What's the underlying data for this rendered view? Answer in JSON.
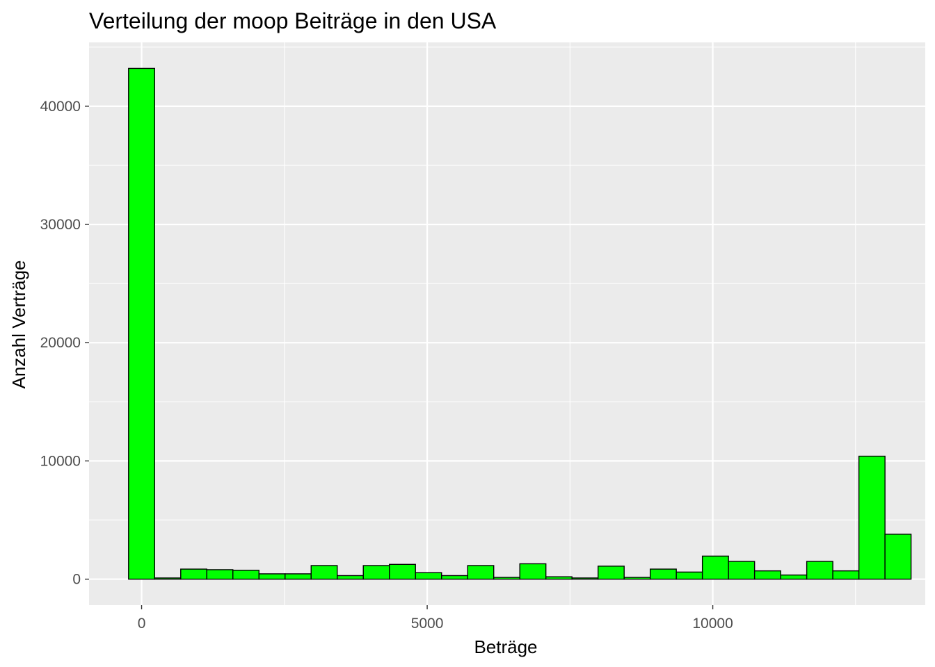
{
  "chart_data": {
    "type": "bar",
    "title": "Verteilung der moop Beiträge in den USA",
    "xlabel": "Beträge",
    "ylabel": "Anzahl Verträge",
    "xlim": [
      -920,
      13720
    ],
    "ylim": [
      -2200,
      45400
    ],
    "x_ticks": [
      0,
      5000,
      10000
    ],
    "y_ticks": [
      0,
      10000,
      20000,
      30000,
      40000
    ],
    "grid": true,
    "bin_width": 456.7,
    "colors": {
      "fill": "#00ff00",
      "outline": "#000000",
      "panel": "#ebebeb",
      "grid": "#ffffff",
      "tick_text": "#4d4d4d"
    },
    "bins": [
      {
        "x": 0,
        "count": 43200
      },
      {
        "x": 456.7,
        "count": 100
      },
      {
        "x": 913.3,
        "count": 850
      },
      {
        "x": 1370,
        "count": 800
      },
      {
        "x": 1826.7,
        "count": 750
      },
      {
        "x": 2283.3,
        "count": 450
      },
      {
        "x": 2740,
        "count": 450
      },
      {
        "x": 3196.7,
        "count": 1150
      },
      {
        "x": 3653.3,
        "count": 300
      },
      {
        "x": 4110,
        "count": 1150
      },
      {
        "x": 4566.7,
        "count": 1250
      },
      {
        "x": 5023.3,
        "count": 550
      },
      {
        "x": 5480,
        "count": 300
      },
      {
        "x": 5936.7,
        "count": 1150
      },
      {
        "x": 6393.3,
        "count": 150
      },
      {
        "x": 6850,
        "count": 1300
      },
      {
        "x": 7306.7,
        "count": 200
      },
      {
        "x": 7763.3,
        "count": 100
      },
      {
        "x": 8220,
        "count": 1100
      },
      {
        "x": 8676.7,
        "count": 150
      },
      {
        "x": 9133.3,
        "count": 850
      },
      {
        "x": 9590,
        "count": 600
      },
      {
        "x": 10046.7,
        "count": 1950
      },
      {
        "x": 10503.3,
        "count": 1500
      },
      {
        "x": 10960,
        "count": 700
      },
      {
        "x": 11416.7,
        "count": 350
      },
      {
        "x": 11873.3,
        "count": 1500
      },
      {
        "x": 12330,
        "count": 700
      },
      {
        "x": 12786.7,
        "count": 10400
      },
      {
        "x": 13243.3,
        "count": 3800
      }
    ]
  }
}
